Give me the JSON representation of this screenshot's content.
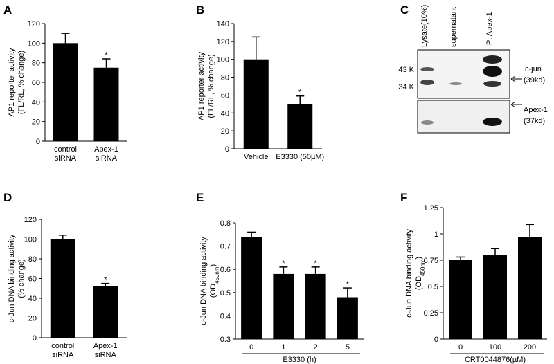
{
  "chart_data": [
    {
      "type": "bar",
      "panel": "A",
      "ylabel": [
        "AP1 reporter activity",
        "(FL/RL, % change)"
      ],
      "categories": [
        [
          "control",
          "siRNA"
        ],
        [
          "Apex-1",
          "siRNA"
        ]
      ],
      "values": [
        100,
        75
      ],
      "errors": [
        10,
        9
      ],
      "significance": [
        null,
        "*"
      ],
      "color": "#000000",
      "ylim": [
        0,
        120
      ],
      "yticks": [
        0,
        20,
        40,
        60,
        80,
        100,
        120
      ]
    },
    {
      "type": "bar",
      "panel": "B",
      "ylabel": [
        "AP1 reporter activity",
        "(FL/RL, % change)"
      ],
      "categories": [
        "Vehicle",
        "E3330 (50µM)"
      ],
      "values": [
        100,
        50
      ],
      "errors": [
        25,
        9
      ],
      "significance": [
        null,
        "*"
      ],
      "color": "#000000",
      "ylim": [
        0,
        140
      ],
      "yticks": [
        0,
        20,
        40,
        60,
        80,
        100,
        120,
        140
      ]
    },
    {
      "type": "bar",
      "panel": "D",
      "ylabel": [
        "c-Jun DNA binding activity",
        "(% change)"
      ],
      "categories": [
        [
          "control",
          "siRNA"
        ],
        [
          "Apex-1",
          "siRNA"
        ]
      ],
      "values": [
        100,
        52
      ],
      "errors": [
        4,
        3
      ],
      "significance": [
        null,
        "*"
      ],
      "color": "#000000",
      "ylim": [
        0,
        120
      ],
      "yticks": [
        0,
        20,
        40,
        60,
        80,
        100,
        120
      ]
    },
    {
      "type": "bar",
      "panel": "E",
      "ylabel": [
        "c-Jun DNA binding activity"
      ],
      "ylabel_unit": [
        "(OD",
        "450nm",
        ")"
      ],
      "categories": [
        "0",
        "1",
        "2",
        "5"
      ],
      "xlabel": "E3330 (h)",
      "values": [
        0.74,
        0.58,
        0.58,
        0.48
      ],
      "errors": [
        0.02,
        0.03,
        0.03,
        0.04
      ],
      "significance": [
        null,
        "*",
        "*",
        "*"
      ],
      "color": "#000000",
      "ylim": [
        0.3,
        0.8
      ],
      "yticks": [
        0.3,
        0.4,
        0.5,
        0.6,
        0.7,
        0.8
      ]
    },
    {
      "type": "bar",
      "panel": "F",
      "ylabel": [
        "c-Jun DNA binding activity"
      ],
      "ylabel_unit": [
        "(OD",
        "450nm",
        ")"
      ],
      "categories": [
        "0",
        "100",
        "200"
      ],
      "xlabel": "CRT0044876(µM)",
      "values": [
        0.75,
        0.8,
        0.97
      ],
      "errors": [
        0.03,
        0.06,
        0.12
      ],
      "color": "#000000",
      "ylim": [
        0,
        1.25
      ],
      "yticks": [
        0,
        0.25,
        0.5,
        0.75,
        1,
        1.25
      ]
    }
  ],
  "blot": {
    "panel": "C",
    "lanes": [
      "Lysate(10%)",
      "supernatant",
      "IP: Apex-1"
    ],
    "markers": [
      "43 K",
      "34 K"
    ],
    "bands": [
      [
        "c-jun",
        "(39kd)"
      ],
      [
        "Apex-1",
        "(37kd)"
      ]
    ]
  }
}
